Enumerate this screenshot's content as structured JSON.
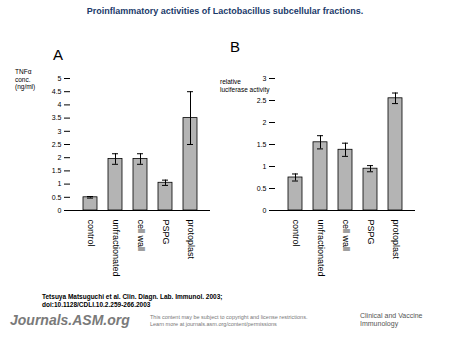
{
  "header": {
    "title": "Proinflammatory activities of Lactobacillus subcellular fractions."
  },
  "chart_data": [
    {
      "type": "bar",
      "panel": "A",
      "y_label": "TNFα conc. (ng/ml)",
      "categories": [
        "control",
        "unfractionated",
        "cell wall",
        "PSPG",
        "protoplast"
      ],
      "values": [
        0.5,
        1.95,
        1.95,
        1.05,
        3.5
      ],
      "errors": [
        0.03,
        0.2,
        0.2,
        0.1,
        1.0
      ],
      "color": "#b4b4b4",
      "ylim": [
        0,
        5
      ],
      "yticks": [
        0,
        0.5,
        1,
        1.5,
        2,
        2.5,
        3,
        3.5,
        4,
        4.5,
        5
      ]
    },
    {
      "type": "bar",
      "panel": "B",
      "y_label": "relative luciferase activity",
      "categories": [
        "control",
        "unfractionated",
        "cell wall",
        "PSPG",
        "protoplast"
      ],
      "values": [
        0.75,
        1.55,
        1.38,
        0.95,
        2.55
      ],
      "errors": [
        0.08,
        0.15,
        0.15,
        0.07,
        0.12
      ],
      "color": "#b4b4b4",
      "ylim": [
        0,
        3
      ],
      "yticks": [
        0,
        0.5,
        1,
        1.5,
        2,
        2.5,
        3
      ]
    }
  ],
  "citation": [
    "Tetsuya Matsuguchi et al. Clin. Diagn. Lab. Immunol. 2003;",
    "doi:10.1128/CDLI.10.2.259-266.2003"
  ],
  "footer": {
    "logo": "Journals.ASM.org",
    "notice": [
      "This content may be subject to copyright and license restrictions.",
      "Learn more at journals.asm.org/content/permissions"
    ],
    "journal": "Clinical and Vaccine Immunology"
  }
}
